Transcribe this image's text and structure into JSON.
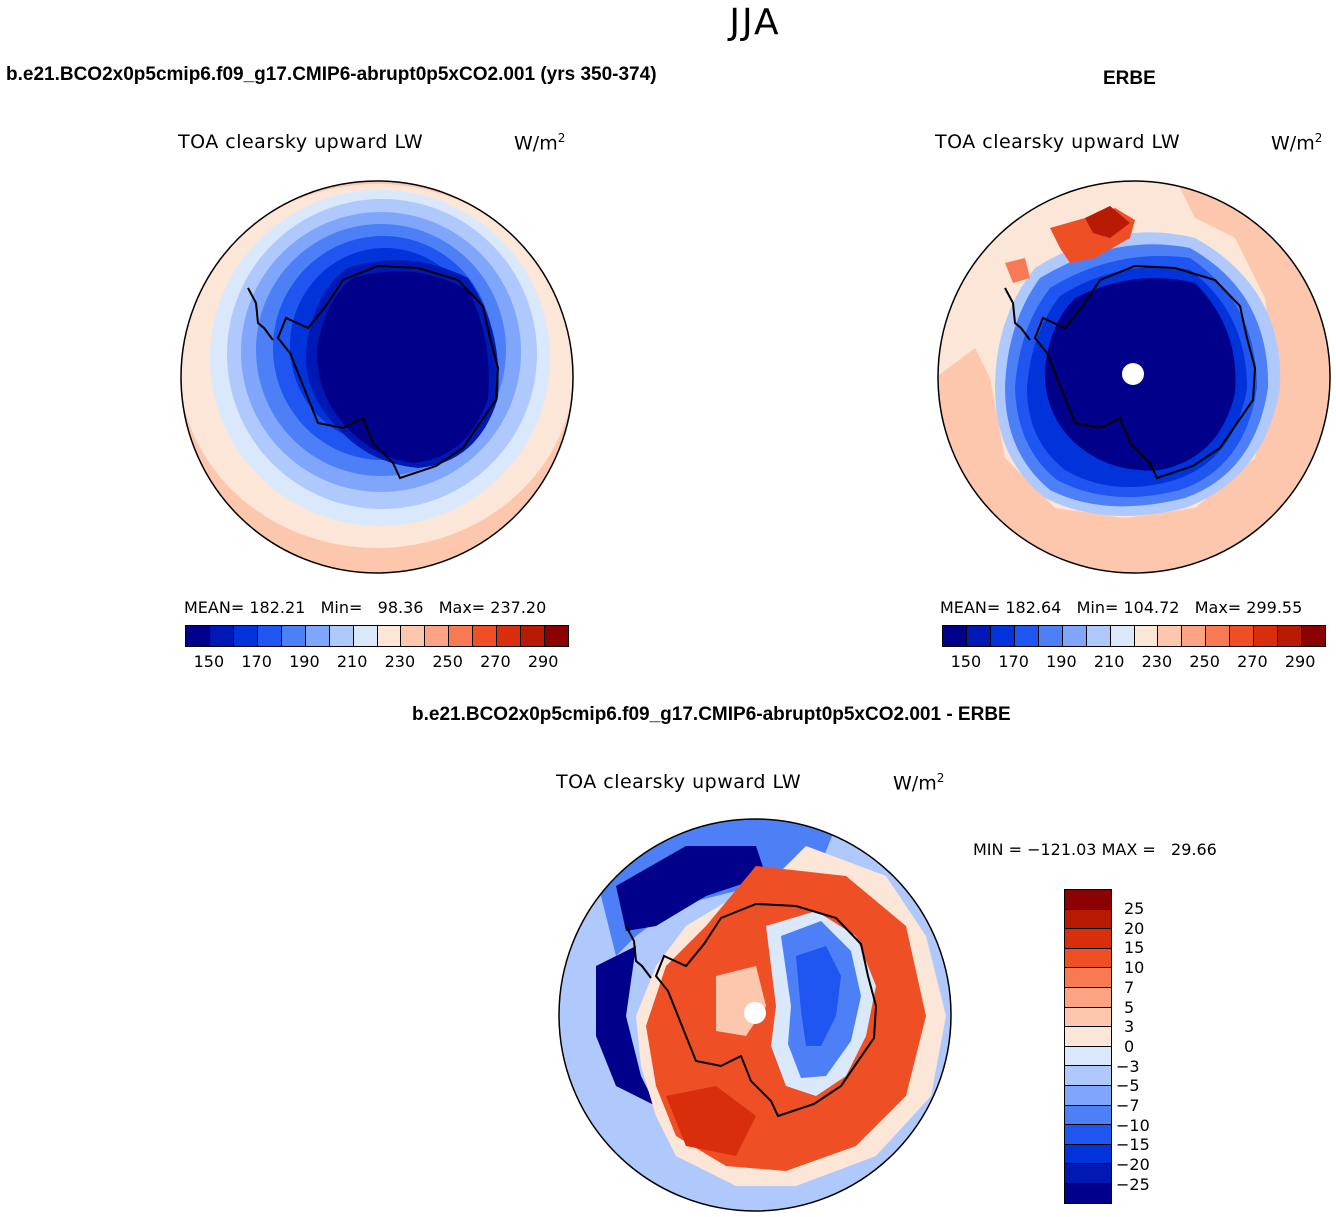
{
  "suptitle": "JJA",
  "panels": {
    "model": {
      "case_title": "b.e21.BCO2x0p5cmip6.f09_g17.CMIP6-abrupt0p5xCO2.001 (yrs 350-374)",
      "plot_title": "TOA clearsky upward LW",
      "units_base": "W/m",
      "units_exp": "2",
      "stats": {
        "mean_label": "MEAN=",
        "mean": "182.21",
        "min_label": "Min=",
        "min": "98.36",
        "max_label": "Max=",
        "max": "237.20"
      }
    },
    "obs": {
      "case_title": "ERBE",
      "plot_title": "TOA clearsky upward LW",
      "units_base": "W/m",
      "units_exp": "2",
      "stats": {
        "mean_label": "MEAN=",
        "mean": "182.64",
        "min_label": "Min=",
        "min": "104.72",
        "max_label": "Max=",
        "max": "299.55"
      }
    },
    "diff": {
      "case_title": "b.e21.BCO2x0p5cmip6.f09_g17.CMIP6-abrupt0p5xCO2.001 - ERBE",
      "plot_title": "TOA clearsky upward LW",
      "units_base": "W/m",
      "units_exp": "2",
      "minmax": {
        "min_label": "MIN =",
        "min": "-121.03",
        "max_label": "MAX =",
        "max": "29.66"
      }
    }
  },
  "colorbar_abs": {
    "colors": [
      "#00008b",
      "#0019b5",
      "#0033d9",
      "#1f55f0",
      "#4d80f7",
      "#7fa6fb",
      "#b0c9fc",
      "#dae8fb",
      "#fbe6d8",
      "#fcc7ad",
      "#fba383",
      "#f87a54",
      "#ef4f24",
      "#d92e0c",
      "#b81a04",
      "#8b0000"
    ],
    "ticks": [
      "150",
      "170",
      "190",
      "210",
      "230",
      "250",
      "270",
      "290"
    ]
  },
  "colorbar_diff": {
    "colors": [
      "#8b0000",
      "#b81a04",
      "#d92e0c",
      "#ef4f24",
      "#f87a54",
      "#fba383",
      "#fcc7ad",
      "#fbe6d8",
      "#dae8fb",
      "#b0c9fc",
      "#7fa6fb",
      "#4d80f7",
      "#1f55f0",
      "#0033d9",
      "#0019b5",
      "#00008b"
    ],
    "ticks": [
      "25",
      "20",
      "15",
      "10",
      "7",
      "5",
      "3",
      "0",
      "-3",
      "-5",
      "-7",
      "-10",
      "-15",
      "-20",
      "-25"
    ]
  }
}
